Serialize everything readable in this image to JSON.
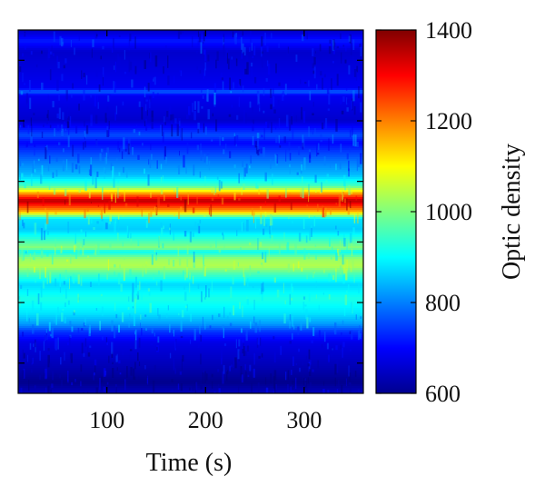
{
  "chart_data": {
    "type": "heatmap",
    "title": "",
    "xlabel": "Time (s)",
    "ylabel": "",
    "xlim": [
      10,
      360
    ],
    "x_ticks": [
      100,
      200,
      300
    ],
    "y_tick_count": 6,
    "colorbar": {
      "label": "Optic density",
      "range": [
        600,
        1400
      ],
      "ticks": [
        600,
        800,
        1000,
        1200,
        1400
      ],
      "colormap": "jet"
    },
    "value_profile_top_to_bottom": [
      {
        "position": 0.0,
        "value": 650
      },
      {
        "position": 0.03,
        "value": 720
      },
      {
        "position": 0.06,
        "value": 660
      },
      {
        "position": 0.16,
        "value": 690
      },
      {
        "position": 0.17,
        "value": 780
      },
      {
        "position": 0.18,
        "value": 690
      },
      {
        "position": 0.25,
        "value": 660
      },
      {
        "position": 0.29,
        "value": 760
      },
      {
        "position": 0.31,
        "value": 700
      },
      {
        "position": 0.36,
        "value": 790
      },
      {
        "position": 0.4,
        "value": 850
      },
      {
        "position": 0.43,
        "value": 960
      },
      {
        "position": 0.45,
        "value": 1180
      },
      {
        "position": 0.47,
        "value": 1360
      },
      {
        "position": 0.5,
        "value": 1160
      },
      {
        "position": 0.52,
        "value": 880
      },
      {
        "position": 0.55,
        "value": 860
      },
      {
        "position": 0.57,
        "value": 920
      },
      {
        "position": 0.6,
        "value": 1010
      },
      {
        "position": 0.61,
        "value": 900
      },
      {
        "position": 0.63,
        "value": 1020
      },
      {
        "position": 0.65,
        "value": 1040
      },
      {
        "position": 0.67,
        "value": 960
      },
      {
        "position": 0.7,
        "value": 870
      },
      {
        "position": 0.74,
        "value": 920
      },
      {
        "position": 0.78,
        "value": 880
      },
      {
        "position": 0.81,
        "value": 820
      },
      {
        "position": 0.83,
        "value": 740
      },
      {
        "position": 0.86,
        "value": 680
      },
      {
        "position": 0.93,
        "value": 640
      },
      {
        "position": 0.97,
        "value": 610
      },
      {
        "position": 1.0,
        "value": 650
      }
    ]
  }
}
